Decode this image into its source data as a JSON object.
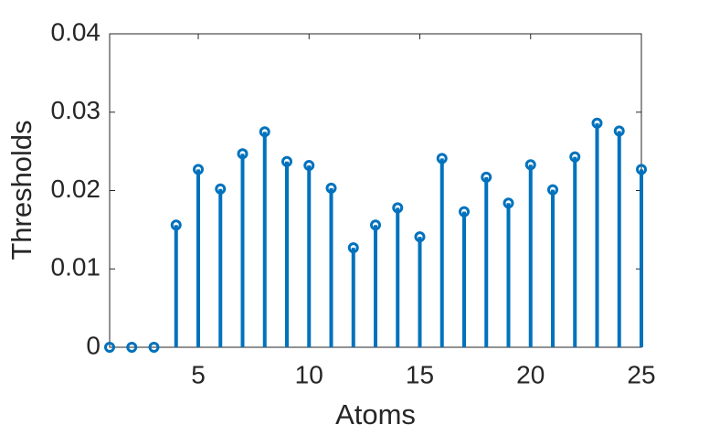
{
  "chart_data": {
    "type": "stem",
    "xlabel": "Atoms",
    "ylabel": "Thresholds",
    "x": [
      1,
      2,
      3,
      4,
      5,
      6,
      7,
      8,
      9,
      10,
      11,
      12,
      13,
      14,
      15,
      16,
      17,
      18,
      19,
      20,
      21,
      22,
      23,
      24,
      25
    ],
    "values": [
      0,
      0,
      0,
      0.0156,
      0.0227,
      0.0202,
      0.0247,
      0.0275,
      0.0237,
      0.0232,
      0.0203,
      0.0127,
      0.0156,
      0.0178,
      0.0141,
      0.0241,
      0.0173,
      0.0217,
      0.0184,
      0.0233,
      0.0201,
      0.0243,
      0.0286,
      0.0276,
      0.0227
    ],
    "color": "#0072bd",
    "xlim": [
      1,
      25
    ],
    "xticks": [
      5,
      10,
      15,
      20,
      25
    ],
    "ylim": [
      0,
      0.04
    ],
    "yticks": [
      0,
      0.01,
      0.02,
      0.03,
      0.04
    ],
    "grid": false
  }
}
